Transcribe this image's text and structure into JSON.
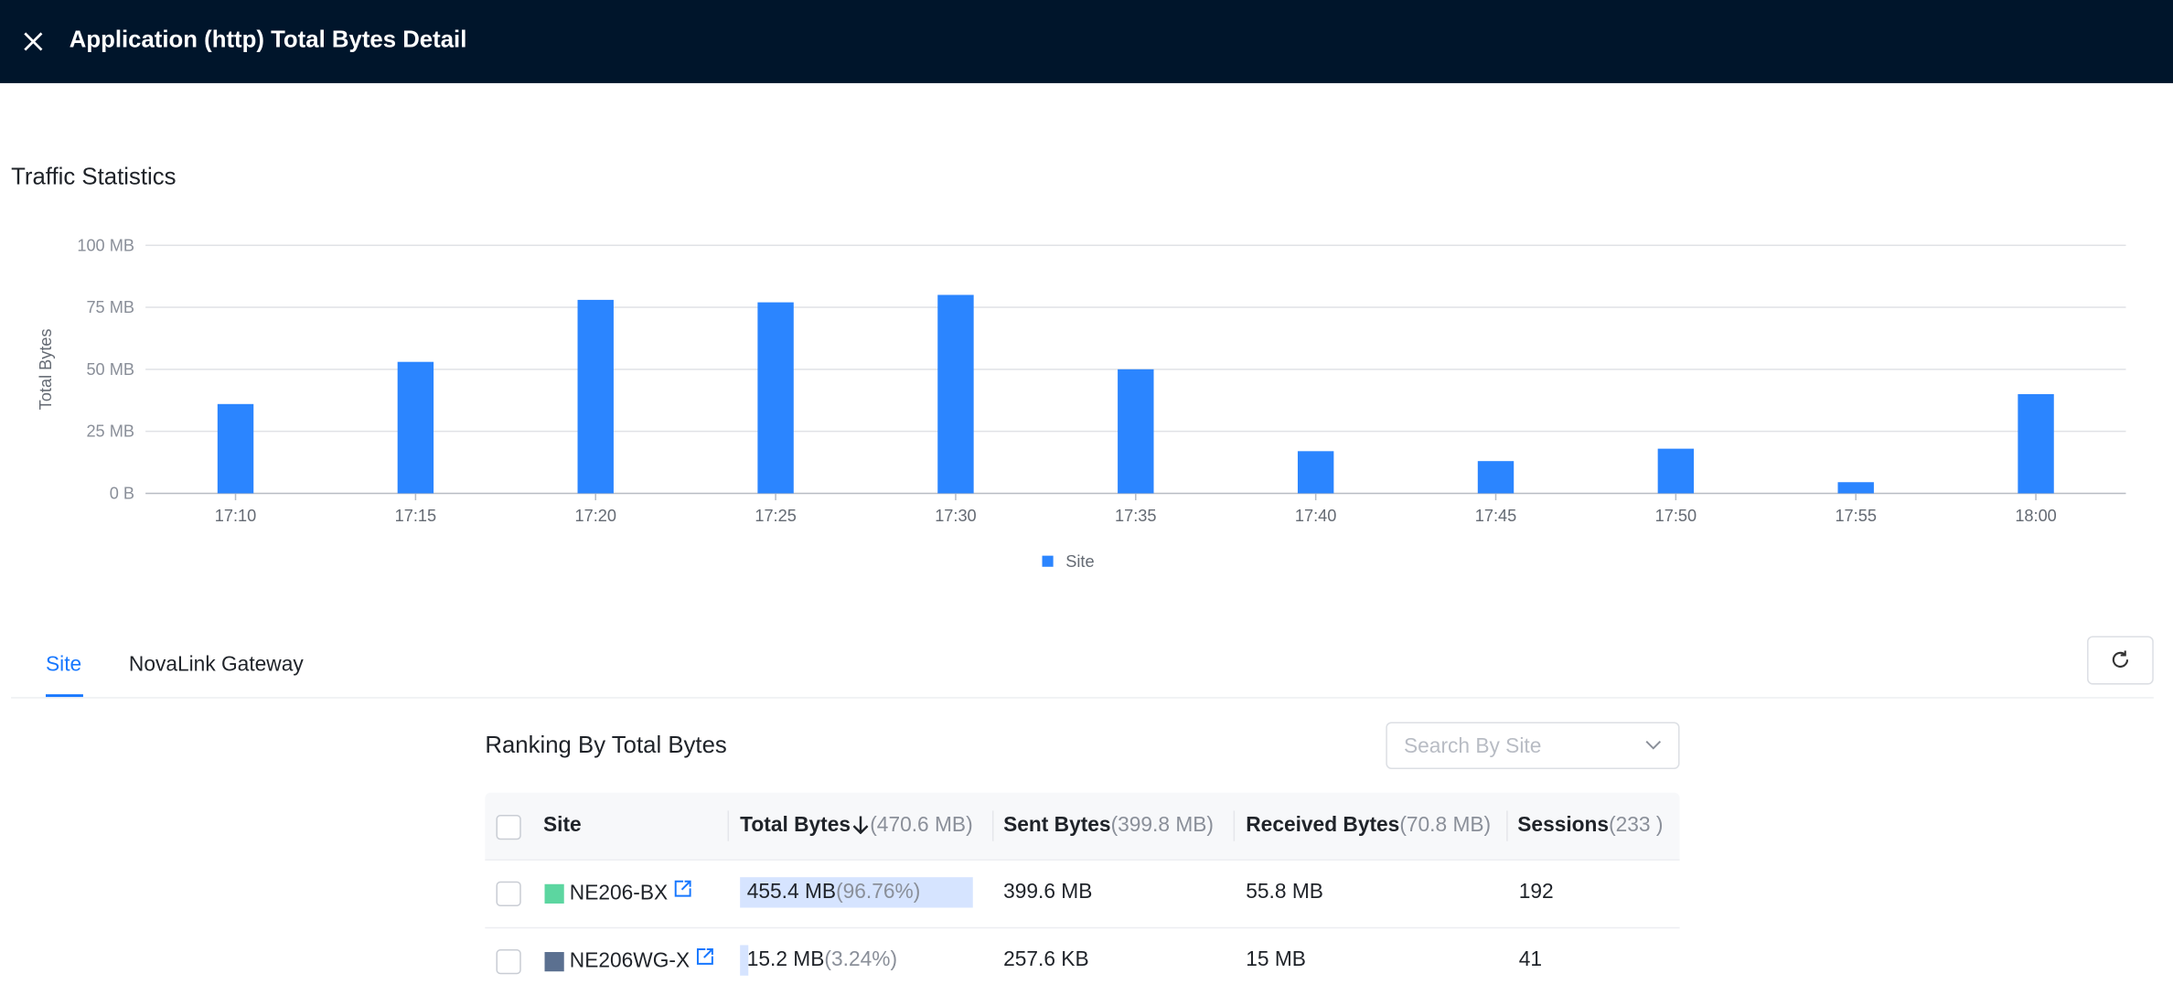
{
  "header": {
    "title": "Application (http) Total Bytes Detail"
  },
  "section_title": "Traffic Statistics",
  "chart_data": {
    "type": "bar",
    "categories": [
      "17:10",
      "17:15",
      "17:20",
      "17:25",
      "17:30",
      "17:35",
      "17:40",
      "17:45",
      "17:50",
      "17:55",
      "18:00"
    ],
    "series": [
      {
        "name": "Site",
        "color": "#2b85ff",
        "values": [
          36,
          53,
          78,
          77,
          80,
          50,
          17,
          13,
          18,
          4.5,
          40
        ]
      }
    ],
    "ylabel": "Total Bytes",
    "ylim": [
      0,
      100
    ],
    "yticks": [
      {
        "value": 0,
        "label": "0 B"
      },
      {
        "value": 25,
        "label": "25 MB"
      },
      {
        "value": 50,
        "label": "50 MB"
      },
      {
        "value": 75,
        "label": "75 MB"
      },
      {
        "value": 100,
        "label": "100 MB"
      }
    ],
    "grid": true,
    "legend": "bottom"
  },
  "tabs": [
    "Site",
    "NovaLink Gateway"
  ],
  "ranking": {
    "title": "Ranking By Total Bytes",
    "search_placeholder": "Search By Site",
    "columns": [
      {
        "name": "Site"
      },
      {
        "name": "Total Bytes",
        "total": "(470.6 MB)"
      },
      {
        "name": "Sent Bytes",
        "total": "(399.8 MB)"
      },
      {
        "name": "Received Bytes",
        "total": "(70.8 MB)"
      },
      {
        "name": "Sessions",
        "total": "(233 )"
      }
    ],
    "rows": [
      {
        "color": "#5cd6a0",
        "site": "NE206-BX",
        "total": "455.4 MB",
        "share": {
          "value": 96.76,
          "label": "(96.76%)"
        },
        "sent": "399.6 MB",
        "received": "55.8 MB",
        "sessions": "192"
      },
      {
        "color": "#5b7090",
        "site": "NE206WG-X",
        "total": "15.2 MB",
        "share": {
          "value": 3.24,
          "label": "(3.24%)"
        },
        "sent": "257.6 KB",
        "received": "15 MB",
        "sessions": "41"
      }
    ]
  }
}
